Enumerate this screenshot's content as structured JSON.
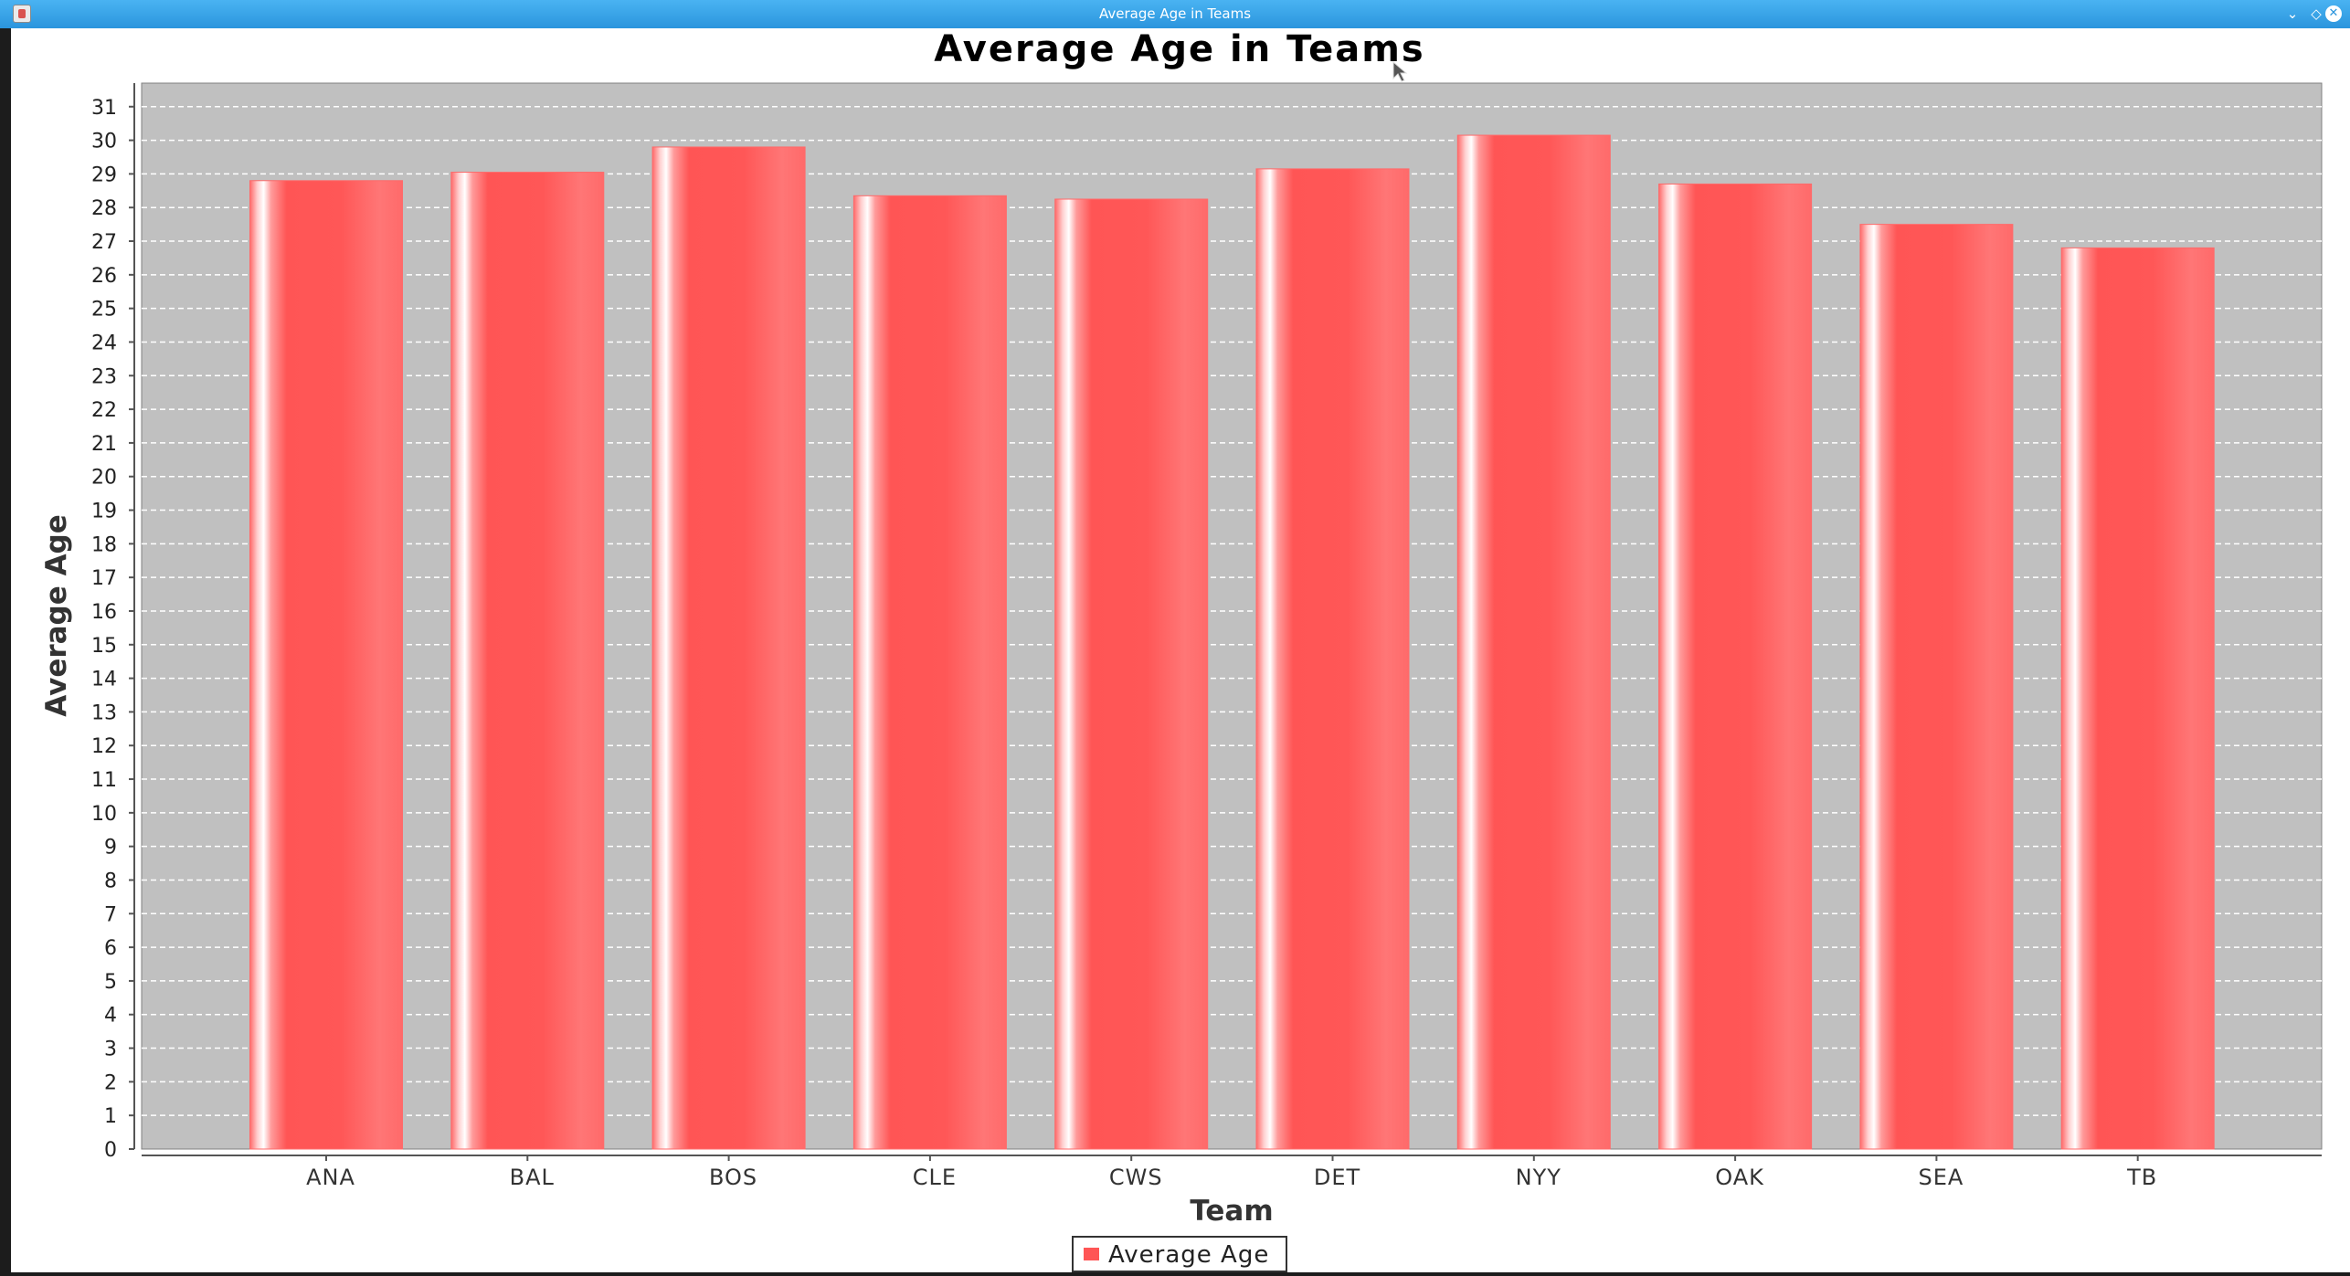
{
  "window": {
    "title": "Average Age in Teams",
    "buttons": {
      "minimize": "⌄",
      "maximize": "◇",
      "close": "✕"
    }
  },
  "colors": {
    "titlebar": "#2b95dd",
    "plot_background": "#c0c0c0",
    "bar": "#ff5555",
    "gridline": "#ffffff"
  },
  "chart_data": {
    "type": "bar",
    "title": "Average Age in Teams",
    "xlabel": "Team",
    "ylabel": "Average Age",
    "categories": [
      "ANA",
      "BAL",
      "BOS",
      "CLE",
      "CWS",
      "DET",
      "NYY",
      "OAK",
      "SEA",
      "TB"
    ],
    "series": [
      {
        "name": "Average Age",
        "values": [
          28.8,
          29.05,
          29.8,
          28.35,
          28.25,
          29.15,
          30.15,
          28.7,
          27.5,
          26.8
        ]
      }
    ],
    "ylim": [
      0,
      31.7
    ],
    "yticks": [
      "0",
      "1",
      "2",
      "3",
      "4",
      "5",
      "6",
      "7",
      "8",
      "9",
      "10",
      "11",
      "12",
      "13",
      "14",
      "15",
      "16",
      "17",
      "18",
      "19",
      "20",
      "21",
      "22",
      "23",
      "24",
      "25",
      "26",
      "27",
      "28",
      "29",
      "30",
      "31"
    ],
    "grid": true,
    "legend_position": "bottom"
  }
}
